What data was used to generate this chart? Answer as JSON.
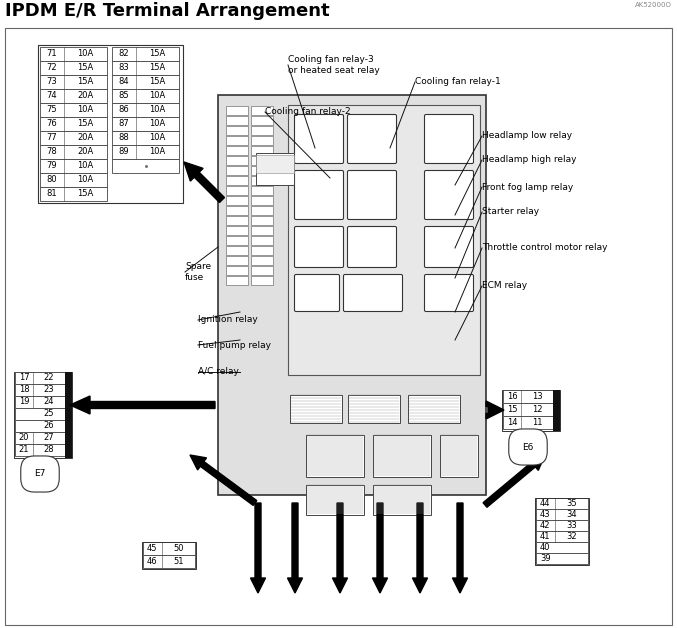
{
  "title": "IPDM E/R Terminal Arrangement",
  "subtitle_code": "AK52000O",
  "bg_color": "#ffffff",
  "fuse_left": [
    [
      "71",
      "10A"
    ],
    [
      "72",
      "15A"
    ],
    [
      "73",
      "15A"
    ],
    [
      "74",
      "20A"
    ],
    [
      "75",
      "10A"
    ],
    [
      "76",
      "15A"
    ],
    [
      "77",
      "20A"
    ],
    [
      "78",
      "20A"
    ],
    [
      "79",
      "10A"
    ],
    [
      "80",
      "10A"
    ],
    [
      "81",
      "15A"
    ]
  ],
  "fuse_right": [
    [
      "82",
      "15A"
    ],
    [
      "83",
      "15A"
    ],
    [
      "84",
      "15A"
    ],
    [
      "85",
      "10A"
    ],
    [
      "86",
      "10A"
    ],
    [
      "87",
      "10A"
    ],
    [
      "88",
      "10A"
    ],
    [
      "89",
      "10A"
    ],
    [
      "",
      ""
    ]
  ],
  "e7_rows": [
    [
      "17",
      "22"
    ],
    [
      "18",
      "23"
    ],
    [
      "19",
      "24"
    ],
    [
      "",
      "25"
    ],
    [
      "",
      "26"
    ],
    [
      "20",
      "27"
    ],
    [
      "21",
      "28"
    ]
  ],
  "e6_rows": [
    [
      "16",
      "13"
    ],
    [
      "15",
      "12"
    ],
    [
      "14",
      "11"
    ]
  ],
  "bl_rows": [
    [
      "45",
      "50"
    ],
    [
      "46",
      "51"
    ]
  ],
  "br_rows": [
    [
      "44",
      "35"
    ],
    [
      "43",
      "34"
    ],
    [
      "42",
      "33"
    ],
    [
      "41",
      "32"
    ],
    [
      "40",
      ""
    ],
    [
      "39",
      ""
    ]
  ],
  "title_fs": 13,
  "label_fs": 6.5,
  "cell_fs": 6.0
}
